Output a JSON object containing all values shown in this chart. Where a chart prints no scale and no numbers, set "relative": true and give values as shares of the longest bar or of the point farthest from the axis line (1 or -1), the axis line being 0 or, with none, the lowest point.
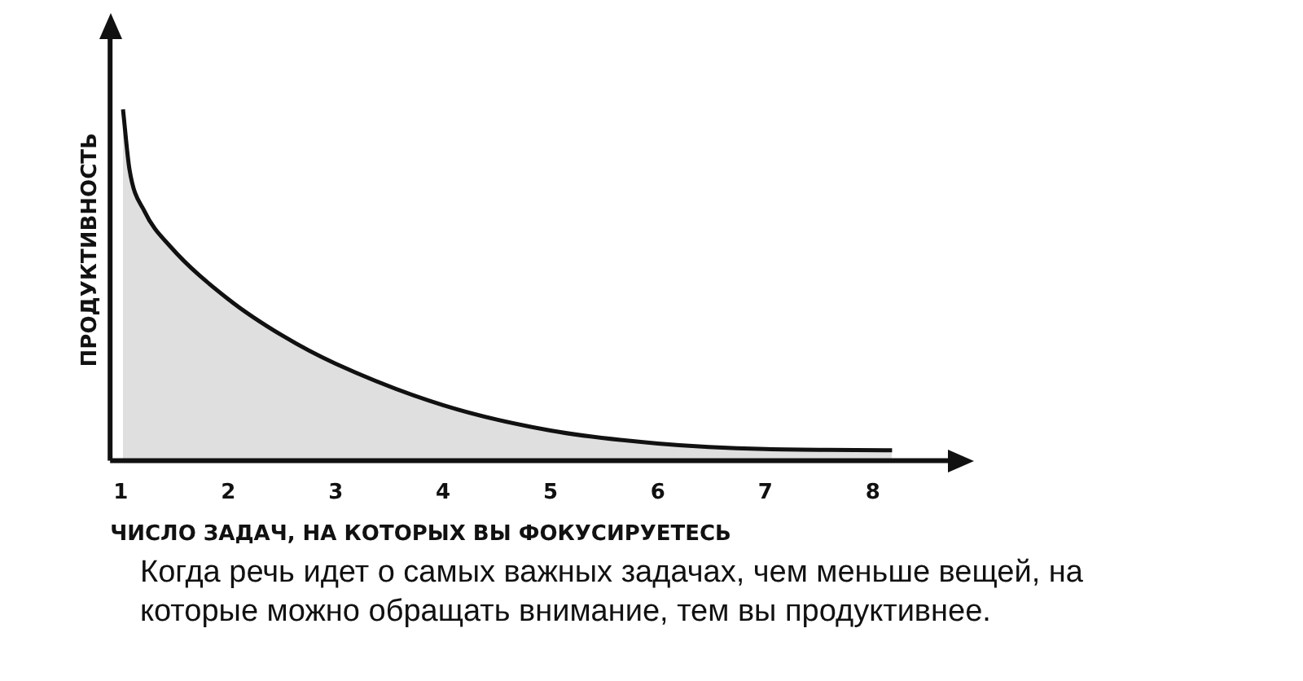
{
  "chart_data": {
    "type": "area",
    "relative": true,
    "xlabel": "ЧИСЛО ЗАДАЧ, НА КОТОРЫХ ВЫ ФОКУСИРУЕТЕСЬ",
    "ylabel": "ПРОДУКТИВНОСТЬ",
    "x": [
      1.02,
      1.08,
      1.22,
      1.46,
      2,
      2.51,
      3,
      4,
      5,
      6,
      7,
      8.18
    ],
    "values": [
      1.0,
      0.83,
      0.71,
      0.61,
      0.46,
      0.355,
      0.276,
      0.158,
      0.086,
      0.049,
      0.033,
      0.03
    ],
    "color": "#111111",
    "xlim": [
      0.9,
      8.7
    ],
    "xticks": [
      1,
      2,
      3,
      4,
      5,
      6,
      7,
      8
    ],
    "grid": false,
    "annotations": [
      "Когда речь идет о самых важных задачах, чем меньше вещей, на которые можно обращать внимание, тем вы продуктивнее."
    ]
  }
}
